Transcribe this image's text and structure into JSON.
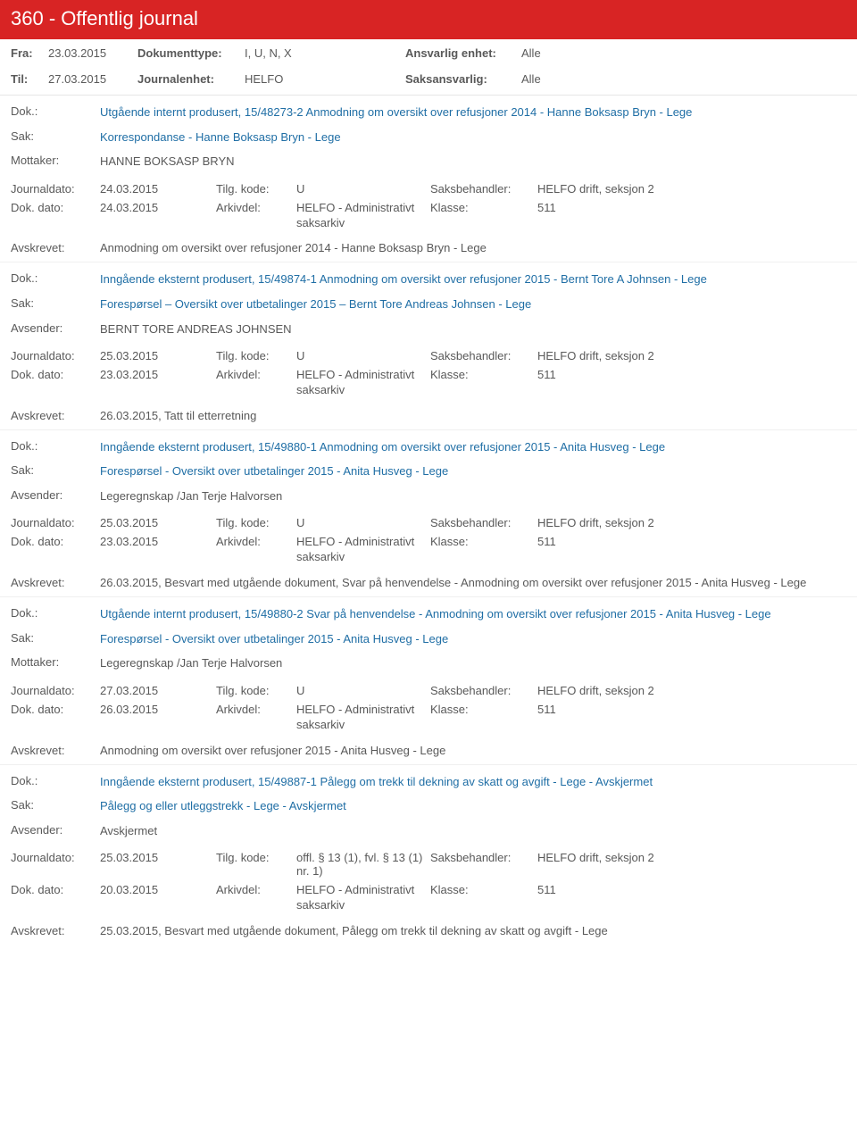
{
  "header": {
    "title": "360 - Offentlig journal"
  },
  "filters": {
    "fra_label": "Fra:",
    "fra_value": "23.03.2015",
    "til_label": "Til:",
    "til_value": "27.03.2015",
    "doktype_label": "Dokumenttype:",
    "doktype_value": "I, U, N, X",
    "journalenhet_label": "Journalenhet:",
    "journalenhet_value": "HELFO",
    "ansvarlig_label": "Ansvarlig enhet:",
    "ansvarlig_value": "Alle",
    "saksansvarlig_label": "Saksansvarlig:",
    "saksansvarlig_value": "Alle"
  },
  "labels": {
    "dok": "Dok.:",
    "sak": "Sak:",
    "mottaker": "Mottaker:",
    "avsender": "Avsender:",
    "journaldato": "Journaldato:",
    "dokdato": "Dok. dato:",
    "tilgkode": "Tilg. kode:",
    "arkivdel": "Arkivdel:",
    "saksbehandler": "Saksbehandler:",
    "klasse": "Klasse:",
    "avskrevet": "Avskrevet:"
  },
  "common": {
    "arkivdel_value": "HELFO - Administrativt saksarkiv",
    "saksbehandler_value": "HELFO drift, seksjon 2",
    "klasse_value": "511",
    "tilg_u": "U"
  },
  "entries": [
    {
      "dok": "Utgående internt produsert, 15/48273-2 Anmodning om oversikt over refusjoner 2014 - Hanne Boksasp Bryn - Lege",
      "sak": "Korrespondanse - Hanne Boksasp Bryn - Lege",
      "party_label": "Mottaker:",
      "party_value": "HANNE BOKSASP BRYN",
      "journaldato": "24.03.2015",
      "dokdato": "24.03.2015",
      "tilgkode": "U",
      "avskrevet": "Anmodning om oversikt over refusjoner 2014 - Hanne Boksasp Bryn - Lege"
    },
    {
      "dok": "Inngående eksternt produsert, 15/49874-1 Anmodning om oversikt over refusjoner 2015 - Bernt Tore A Johnsen - Lege",
      "sak": "Forespørsel – Oversikt over utbetalinger 2015 – Bernt Tore Andreas Johnsen - Lege",
      "party_label": "Avsender:",
      "party_value": "BERNT TORE ANDREAS JOHNSEN",
      "journaldato": "25.03.2015",
      "dokdato": "23.03.2015",
      "tilgkode": "U",
      "avskrevet": "26.03.2015, Tatt til etterretning"
    },
    {
      "dok": "Inngående eksternt produsert, 15/49880-1 Anmodning om oversikt over refusjoner 2015 - Anita Husveg - Lege",
      "sak": "Forespørsel - Oversikt over utbetalinger 2015 - Anita Husveg - Lege",
      "party_label": "Avsender:",
      "party_value": "Legeregnskap /Jan Terje Halvorsen",
      "journaldato": "25.03.2015",
      "dokdato": "23.03.2015",
      "tilgkode": "U",
      "avskrevet": "26.03.2015, Besvart med utgående dokument, Svar på henvendelse - Anmodning om oversikt over refusjoner 2015 - Anita Husveg - Lege"
    },
    {
      "dok": "Utgående internt produsert, 15/49880-2 Svar på henvendelse - Anmodning om oversikt over refusjoner 2015 - Anita Husveg - Lege",
      "sak": "Forespørsel - Oversikt over utbetalinger 2015 - Anita Husveg - Lege",
      "party_label": "Mottaker:",
      "party_value": "Legeregnskap /Jan Terje Halvorsen",
      "journaldato": "27.03.2015",
      "dokdato": "26.03.2015",
      "tilgkode": "U",
      "avskrevet": "Anmodning om oversikt over refusjoner 2015 - Anita Husveg - Lege"
    },
    {
      "dok": "Inngående eksternt produsert, 15/49887-1 Pålegg om trekk til dekning av skatt og avgift - Lege - Avskjermet",
      "sak": "Pålegg og eller utleggstrekk - Lege - Avskjermet",
      "party_label": "Avsender:",
      "party_value": "Avskjermet",
      "journaldato": "25.03.2015",
      "dokdato": "20.03.2015",
      "tilgkode": "offl. § 13 (1), fvl. § 13 (1) nr. 1)",
      "avskrevet": "25.03.2015, Besvart med utgående dokument, Pålegg om trekk til dekning av skatt og avgift - Lege"
    }
  ]
}
